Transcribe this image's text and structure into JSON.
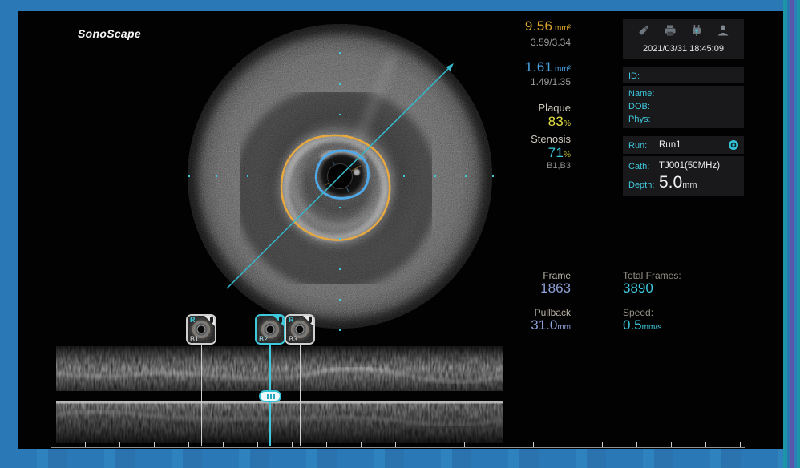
{
  "brand": {
    "logo": "SonoScape"
  },
  "colors": {
    "accent-cyan": "#3ec9dd",
    "accent-gold": "#dba62c",
    "accent-yellow": "#e3df3e",
    "accent-blue": "#4aa2e2",
    "accent-periwinkle": "#8fa0d8",
    "contour-orange": "#e7a93f",
    "contour-blue": "#4fa8e8",
    "frame-blue": "#2a79b6"
  },
  "measurements": {
    "eem_area": "9.56",
    "area_unit": "mm²",
    "eem_diameters": "3.59/3.34",
    "lumen_area": "1.61",
    "lumen_diameters": "1.49/1.35",
    "plaque_label": "Plaque",
    "plaque_value": "83",
    "plaque_unit": "%",
    "stenosis_label": "Stenosis",
    "stenosis_value": "71",
    "stenosis_unit": "%",
    "stenosis_ref": "B1,B3"
  },
  "frame_info": {
    "frame_label": "Frame",
    "frame_value": "1863",
    "total_frames_label": "Total Frames:",
    "total_frames_value": "3890",
    "pullback_label": "Pullback",
    "pullback_value": "31.0",
    "pullback_unit": "mm",
    "speed_label": "Speed:",
    "speed_value": "0.5",
    "speed_unit": "mm/s"
  },
  "status": {
    "datetime": "2021/03/31 18:45:09",
    "icons": [
      "usb-icon",
      "printer-icon",
      "power-icon",
      "user-icon"
    ]
  },
  "patient": {
    "id_label": "ID:",
    "name_label": "Name:",
    "dob_label": "DOB:",
    "phys_label": "Phys:"
  },
  "run_info": {
    "run_label": "Run:",
    "run_value": "Run1",
    "cath_label": "Cath:",
    "cath_value": "TJ001(50MHz)",
    "depth_label": "Depth:",
    "depth_value": "5.0",
    "depth_unit": "mm",
    "run_icon": "info-icon"
  },
  "bookmarks": [
    {
      "label": "B1",
      "flag": "R",
      "selected": false
    },
    {
      "label": "B2",
      "flag": "",
      "selected": true
    },
    {
      "label": "B3",
      "flag": "R",
      "selected": false
    }
  ]
}
